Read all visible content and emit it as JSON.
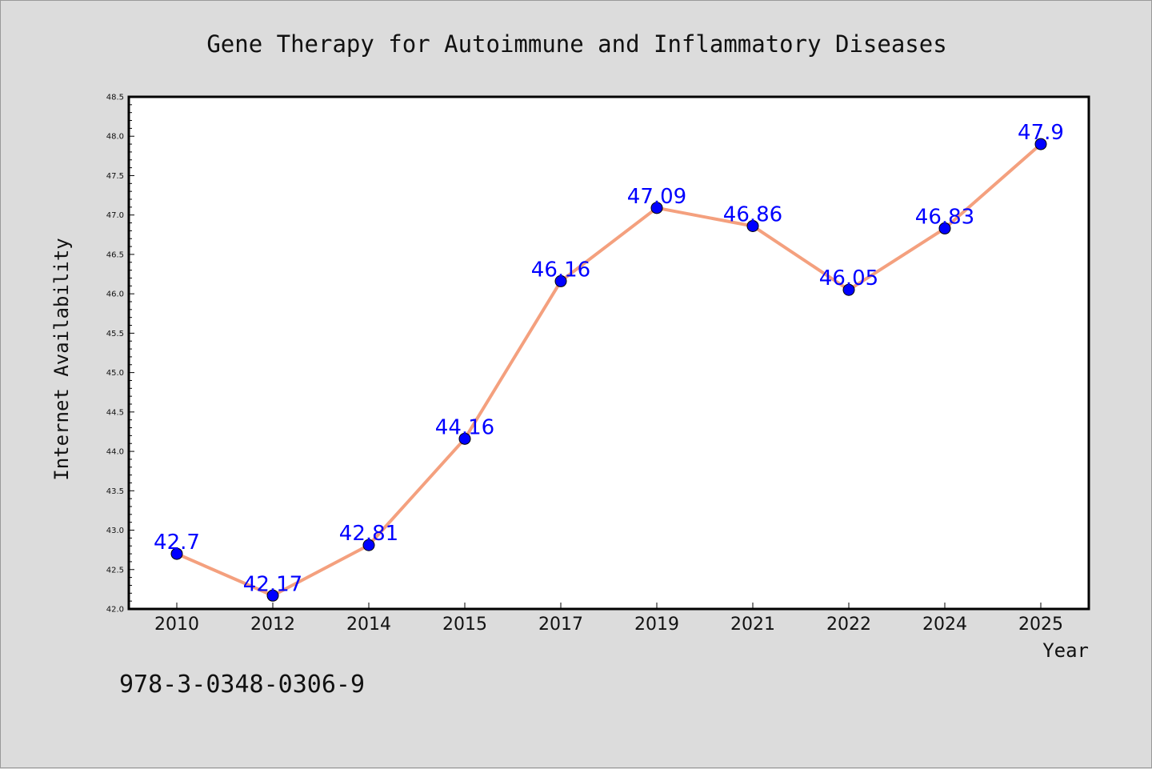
{
  "chart_data": {
    "type": "line",
    "title": "Gene Therapy for Autoimmune and Inflammatory Diseases",
    "xlabel": "Year",
    "ylabel": "Internet Availability",
    "categories": [
      "2010",
      "2012",
      "2014",
      "2015",
      "2017",
      "2019",
      "2021",
      "2022",
      "2024",
      "2025"
    ],
    "series": [
      {
        "values": [
          42.7,
          42.17,
          42.81,
          44.16,
          46.16,
          47.09,
          46.86,
          46.05,
          46.83,
          47.9
        ],
        "data_labels": [
          "42.7",
          "42.17",
          "42.81",
          "44.16",
          "46.16",
          "47.09",
          "46.86",
          "46.05",
          "46.83",
          "47.9"
        ]
      }
    ],
    "ylim": [
      42.0,
      48.5
    ],
    "yticks": [
      "42.0",
      "42.5",
      "43.0",
      "43.5",
      "44.0",
      "44.5",
      "45.0",
      "45.5",
      "46.0",
      "46.5",
      "47.0",
      "47.5",
      "48.0",
      "48.5"
    ],
    "grid": false,
    "legend": "none"
  },
  "annotation": {
    "isbn": "978-3-0348-0306-9"
  },
  "colors": {
    "background": "#dcdcdc",
    "plot_area": "#ffffff",
    "line": "#f4a07e",
    "marker": "#0000ff",
    "data_label": "#0000ff"
  }
}
